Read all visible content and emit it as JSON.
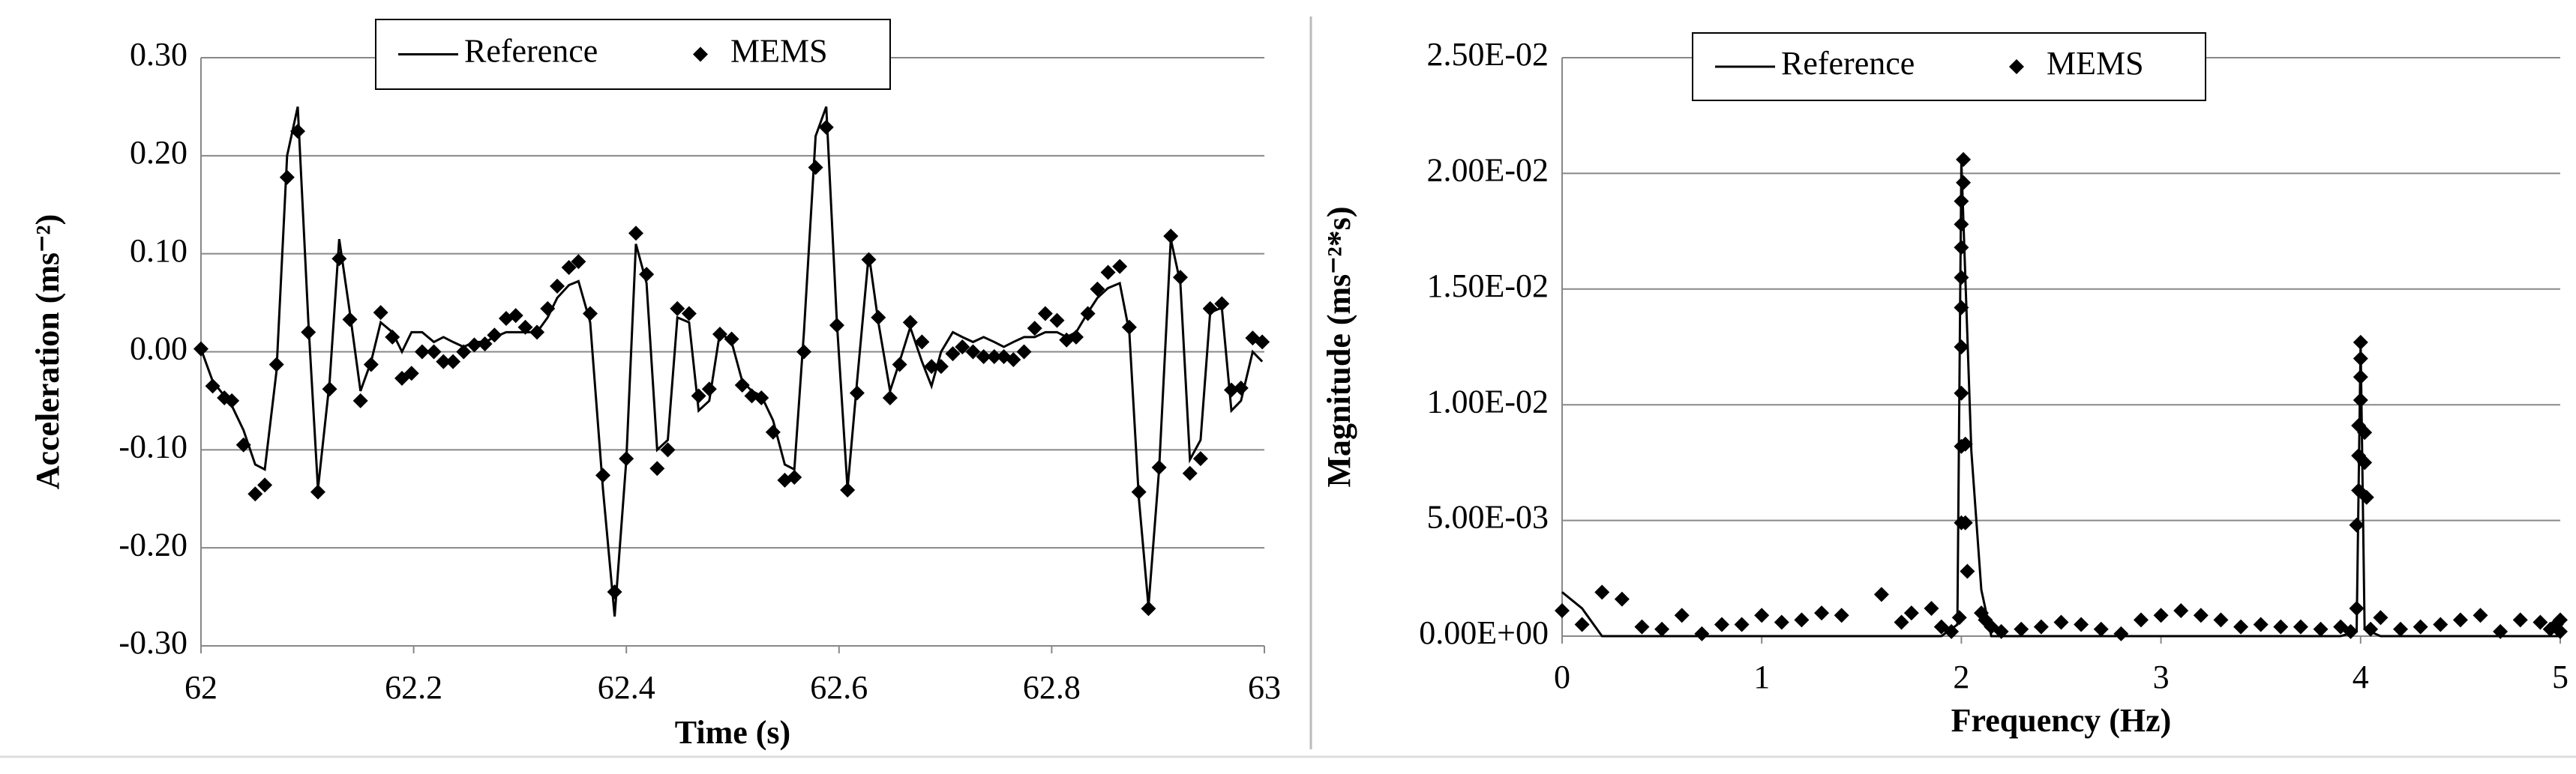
{
  "chart_data": [
    {
      "type": "scatter",
      "x_label": "Time (s)",
      "y_label": "Acceleration (ms⁻²)",
      "grid": true,
      "legend": "upper center",
      "xlim": [
        62,
        63
      ],
      "xticks": [
        62,
        62.2,
        62.4,
        62.6,
        62.8,
        63
      ],
      "ylim": [
        -0.3,
        0.3
      ],
      "yticks": [
        {
          "value": -0.3,
          "label": "-0.30"
        },
        {
          "value": -0.2,
          "label": "-0.20"
        },
        {
          "value": -0.1,
          "label": "-0.10"
        },
        {
          "value": 0,
          "label": "0.00"
        },
        {
          "value": 0.1,
          "label": "0.10"
        },
        {
          "value": 0.2,
          "label": "0.20"
        },
        {
          "value": 0.3,
          "label": "0.30"
        }
      ],
      "x": [
        62.0,
        62.011,
        62.022,
        62.029,
        62.04,
        62.051,
        62.06,
        62.071,
        62.081,
        62.091,
        62.101,
        62.11,
        62.121,
        62.13,
        62.14,
        62.15,
        62.16,
        62.169,
        62.18,
        62.189,
        62.198,
        62.208,
        62.219,
        62.228,
        62.237,
        62.247,
        62.257,
        62.267,
        62.276,
        62.287,
        62.296,
        62.305,
        62.316,
        62.326,
        62.335,
        62.346,
        62.355,
        62.366,
        62.378,
        62.389,
        62.4,
        62.409,
        62.419,
        62.429,
        62.439,
        62.448,
        62.459,
        62.468,
        62.478,
        62.488,
        62.499,
        62.509,
        62.518,
        62.527,
        62.538,
        62.549,
        62.558,
        62.567,
        62.578,
        62.588,
        62.598,
        62.608,
        62.617,
        62.628,
        62.637,
        62.648,
        62.657,
        62.667,
        62.678,
        62.687,
        62.696,
        62.707,
        62.716,
        62.726,
        62.736,
        62.746,
        62.755,
        62.764,
        62.774,
        62.784,
        62.794,
        62.805,
        62.814,
        62.823,
        62.834,
        62.843,
        62.853,
        62.864,
        62.873,
        62.882,
        62.891,
        62.901,
        62.912,
        62.921,
        62.93,
        62.94,
        62.949,
        62.96,
        62.969,
        62.978,
        62.989,
        62.998
      ],
      "series": [
        {
          "name": "Reference",
          "color": "#000000",
          "mode": "line",
          "values": [
            0.003,
            -0.03,
            -0.045,
            -0.055,
            -0.08,
            -0.115,
            -0.12,
            -0.02,
            0.2,
            0.25,
            0.03,
            -0.14,
            -0.03,
            0.115,
            0.04,
            -0.04,
            -0.01,
            0.03,
            0.02,
            0,
            0.02,
            0.02,
            0.01,
            0.015,
            0.01,
            0.005,
            0.01,
            0.01,
            0.015,
            0.02,
            0.02,
            0.02,
            0.02,
            0.035,
            0.055,
            0.068,
            0.072,
            0.03,
            -0.14,
            -0.27,
            -0.11,
            0.11,
            0.07,
            -0.1,
            -0.09,
            0.035,
            0.03,
            -0.06,
            -0.05,
            0.02,
            0.01,
            -0.03,
            -0.04,
            -0.045,
            -0.07,
            -0.115,
            -0.12,
            0.02,
            0.22,
            0.25,
            0.03,
            -0.14,
            -0.03,
            0.1,
            0.03,
            -0.04,
            -0.01,
            0.025,
            -0.01,
            -0.035,
            0,
            0.02,
            0.015,
            0.01,
            0.015,
            0.01,
            0.005,
            0.01,
            0.015,
            0.015,
            0.02,
            0.02,
            0.015,
            0.02,
            0.04,
            0.055,
            0.065,
            0.07,
            0.02,
            -0.15,
            -0.26,
            -0.12,
            0.115,
            0.07,
            -0.11,
            -0.09,
            0.04,
            0.045,
            -0.06,
            -0.05,
            0,
            -0.01
          ]
        },
        {
          "name": "MEMS",
          "color": "#000000",
          "mode": "markers",
          "values": [
            0.003,
            -0.035,
            -0.047,
            -0.05,
            -0.095,
            -0.145,
            -0.136,
            -0.013,
            0.178,
            0.225,
            0.02,
            -0.143,
            -0.038,
            0.095,
            0.033,
            -0.05,
            -0.013,
            0.04,
            0.015,
            -0.027,
            -0.022,
            0,
            0,
            -0.01,
            -0.01,
            0,
            0.007,
            0.008,
            0.017,
            0.034,
            0.037,
            0.025,
            0.02,
            0.044,
            0.067,
            0.086,
            0.092,
            0.039,
            -0.126,
            -0.245,
            -0.109,
            0.121,
            0.079,
            -0.119,
            -0.1,
            0.044,
            0.039,
            -0.045,
            -0.038,
            0.018,
            0.013,
            -0.034,
            -0.045,
            -0.047,
            -0.082,
            -0.131,
            -0.128,
            0,
            0.188,
            0.229,
            0.027,
            -0.141,
            -0.042,
            0.094,
            0.035,
            -0.047,
            -0.013,
            0.03,
            0.01,
            -0.015,
            -0.015,
            -0.002,
            0.005,
            0,
            -0.005,
            -0.005,
            -0.005,
            -0.008,
            0,
            0.024,
            0.039,
            0.032,
            0.012,
            0.015,
            0.039,
            0.064,
            0.081,
            0.087,
            0.025,
            -0.143,
            -0.262,
            -0.118,
            0.118,
            0.076,
            -0.124,
            -0.109,
            0.044,
            0.049,
            -0.039,
            -0.037,
            0.014,
            0.01
          ]
        }
      ]
    },
    {
      "type": "scatter",
      "x_label": "Frequency (Hz)",
      "y_label": "Magnitude (ms⁻²*s)",
      "grid": true,
      "legend": "upper center",
      "xlim": [
        0,
        5
      ],
      "xticks": [
        0,
        1,
        2,
        3,
        4,
        5
      ],
      "ylim": [
        0,
        0.025
      ],
      "yticks": [
        {
          "value": 0,
          "label": "0.00E+00"
        },
        {
          "value": 0.005,
          "label": "5.00E-03"
        },
        {
          "value": 0.01,
          "label": "1.00E-02"
        },
        {
          "value": 0.015,
          "label": "1.50E-02"
        },
        {
          "value": 0.02,
          "label": "2.00E-02"
        },
        {
          "value": 0.025,
          "label": "2.50E-02"
        }
      ],
      "series": [
        {
          "name": "Reference",
          "color": "#000000",
          "mode": "line",
          "x": [
            0,
            0.1,
            0.2,
            1.0,
            1.9,
            1.98,
            2.0,
            2.05,
            2.1,
            2.15,
            3.9,
            3.98,
            4.0,
            4.02,
            4.1,
            5
          ],
          "values": [
            0.0019,
            0.0012,
            0,
            0,
            0,
            0.0005,
            0.0205,
            0.008,
            0.002,
            0,
            0,
            0.0002,
            0.0127,
            0.0003,
            0,
            0
          ]
        },
        {
          "name": "MEMS",
          "color": "#000000",
          "mode": "markers",
          "x": [
            0,
            0.1,
            0.2,
            0.3,
            0.4,
            0.5,
            0.6,
            0.7,
            0.8,
            0.9,
            1.0,
            1.1,
            1.2,
            1.3,
            1.4,
            1.6,
            1.7,
            1.75,
            1.85,
            1.9,
            1.95,
            1.99,
            2.0,
            2.0,
            2.0,
            2.0,
            2.0,
            2.0,
            2.0,
            2.0,
            2.0,
            2.01,
            2.01,
            2.02,
            2.02,
            2.03,
            2.1,
            2.12,
            2.15,
            2.2,
            2.3,
            2.4,
            2.5,
            2.6,
            2.7,
            2.8,
            2.9,
            3.0,
            3.1,
            3.2,
            3.3,
            3.4,
            3.5,
            3.6,
            3.7,
            3.8,
            3.9,
            3.95,
            3.98,
            3.98,
            3.99,
            3.99,
            3.99,
            4.0,
            4.0,
            4.0,
            4.0,
            4.02,
            4.02,
            4.03,
            4.05,
            4.1,
            4.2,
            4.3,
            4.4,
            4.5,
            4.6,
            4.7,
            4.8,
            4.9,
            4.95,
            5.0,
            5.0,
            4.98
          ],
          "values": [
            0.0011,
            0.0005,
            0.0019,
            0.0016,
            0.0004,
            0.0003,
            0.0009,
            0.0001,
            0.0005,
            0.0005,
            0.0009,
            0.0006,
            0.0007,
            0.001,
            0.0009,
            0.0018,
            0.0006,
            0.001,
            0.0012,
            0.0004,
            0.0002,
            0.0008,
            0.0049,
            0.0082,
            0.0105,
            0.0125,
            0.0142,
            0.0155,
            0.0168,
            0.0178,
            0.0188,
            0.0196,
            0.0206,
            0.0049,
            0.0083,
            0.0028,
            0.001,
            0.0007,
            0.0004,
            0.0002,
            0.0003,
            0.0004,
            0.0006,
            0.0005,
            0.0003,
            0.0001,
            0.0007,
            0.0009,
            0.0011,
            0.0009,
            0.0007,
            0.0004,
            0.0005,
            0.0004,
            0.0004,
            0.0003,
            0.0004,
            0.0002,
            0.0012,
            0.0048,
            0.0063,
            0.0078,
            0.0091,
            0.0102,
            0.0112,
            0.012,
            0.0127,
            0.0088,
            0.0075,
            0.006,
            0.0003,
            0.0008,
            0.0003,
            0.0004,
            0.0005,
            0.0007,
            0.0009,
            0.0002,
            0.0007,
            0.0006,
            0.0003,
            0.0007,
            0.0002,
            0.0005
          ]
        }
      ]
    }
  ]
}
